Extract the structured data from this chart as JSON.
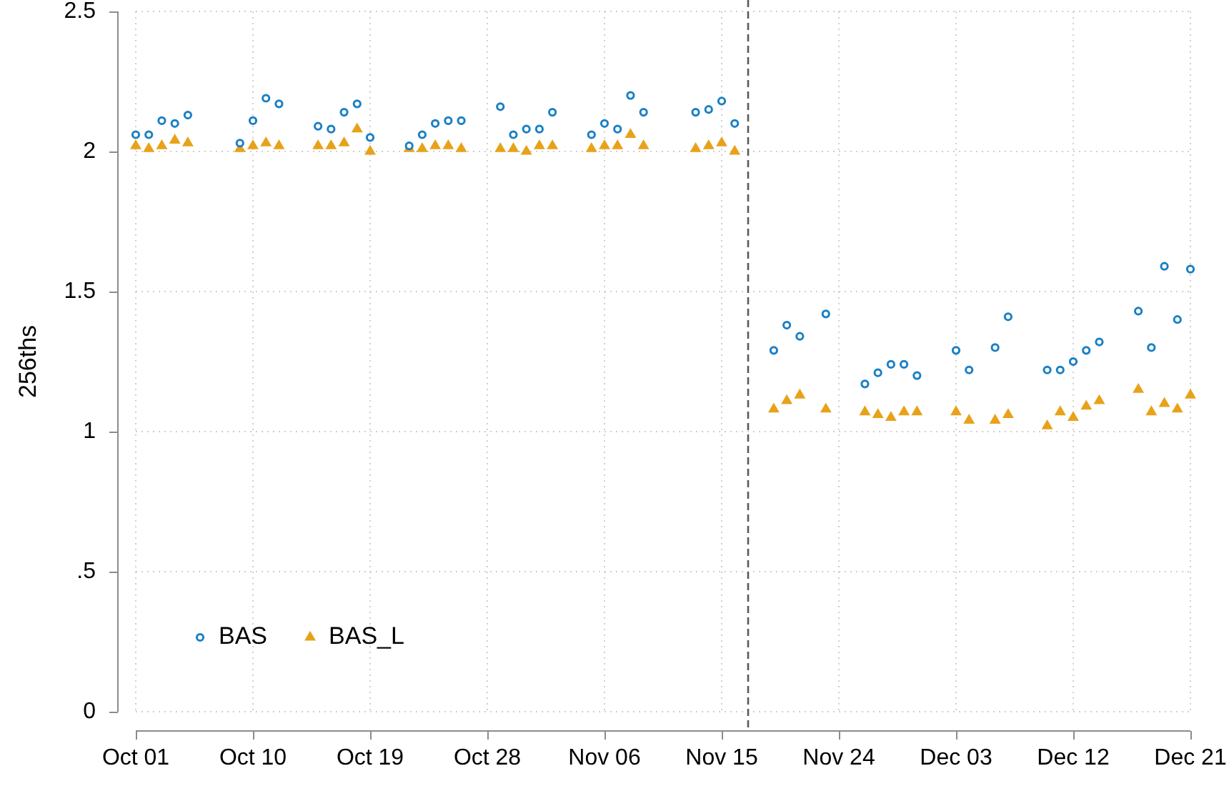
{
  "chart_data": {
    "type": "scatter",
    "ylabel": "256ths",
    "x": [
      "--10-01",
      "--10-02",
      "--10-03",
      "--10-04",
      "--10-05",
      "--10-09",
      "--10-10",
      "--10-11",
      "--10-12",
      "--10-15",
      "--10-16",
      "--10-17",
      "--10-18",
      "--10-19",
      "--10-22",
      "--10-23",
      "--10-24",
      "--10-25",
      "--10-26",
      "--10-29",
      "--10-30",
      "--10-31",
      "--11-01",
      "--11-02",
      "--11-05",
      "--11-06",
      "--11-07",
      "--11-08",
      "--11-09",
      "--11-13",
      "--11-14",
      "--11-15",
      "--11-16",
      "--11-19",
      "--11-20",
      "--11-21",
      "--11-23",
      "--11-26",
      "--11-27",
      "--11-28",
      "--11-29",
      "--11-30",
      "--12-03",
      "--12-04",
      "--12-06",
      "--12-07",
      "--12-10",
      "--12-11",
      "--12-12",
      "--12-13",
      "--12-14",
      "--12-17",
      "--12-18",
      "--12-19",
      "--12-20",
      "--12-21"
    ],
    "series": [
      {
        "name": "BAS",
        "color": "#1a80c4",
        "marker": "circle",
        "values": [
          2.06,
          2.06,
          2.11,
          2.1,
          2.13,
          2.03,
          2.11,
          2.19,
          2.17,
          2.09,
          2.08,
          2.14,
          2.17,
          2.05,
          2.02,
          2.06,
          2.1,
          2.11,
          2.11,
          2.16,
          2.06,
          2.08,
          2.08,
          2.14,
          2.06,
          2.1,
          2.08,
          2.2,
          2.14,
          2.14,
          2.15,
          2.18,
          2.1,
          1.29,
          1.38,
          1.34,
          1.42,
          1.17,
          1.21,
          1.24,
          1.24,
          1.2,
          1.29,
          1.22,
          1.3,
          1.41,
          1.22,
          1.22,
          1.25,
          1.29,
          1.32,
          1.43,
          1.3,
          1.59,
          1.4,
          1.58
        ]
      },
      {
        "name": "BAS_L",
        "color": "#e8a21a",
        "marker": "triangle",
        "values": [
          2.02,
          2.01,
          2.02,
          2.04,
          2.03,
          2.01,
          2.02,
          2.03,
          2.02,
          2.02,
          2.02,
          2.03,
          2.08,
          2.0,
          2.01,
          2.01,
          2.02,
          2.02,
          2.01,
          2.01,
          2.01,
          2.0,
          2.02,
          2.02,
          2.01,
          2.02,
          2.02,
          2.06,
          2.02,
          2.01,
          2.02,
          2.03,
          2.0,
          1.08,
          1.11,
          1.13,
          1.08,
          1.07,
          1.06,
          1.05,
          1.07,
          1.07,
          1.07,
          1.04,
          1.04,
          1.06,
          1.02,
          1.07,
          1.05,
          1.09,
          1.11,
          1.15,
          1.07,
          1.1,
          1.08,
          1.13
        ]
      }
    ],
    "xlim": [
      "--10-01",
      "--12-21"
    ],
    "xticks": [
      {
        "value": "--10-01",
        "label": "Oct 01"
      },
      {
        "value": "--10-10",
        "label": "Oct 10"
      },
      {
        "value": "--10-19",
        "label": "Oct 19"
      },
      {
        "value": "--10-28",
        "label": "Oct 28"
      },
      {
        "value": "--11-06",
        "label": "Nov 06"
      },
      {
        "value": "--11-15",
        "label": "Nov 15"
      },
      {
        "value": "--11-24",
        "label": "Nov 24"
      },
      {
        "value": "--12-03",
        "label": "Dec 03"
      },
      {
        "value": "--12-12",
        "label": "Dec 12"
      },
      {
        "value": "--12-21",
        "label": "Dec 21"
      }
    ],
    "ylim": [
      0,
      2.5
    ],
    "yticks": [
      0,
      {
        "value": 0.5,
        "label": ".5"
      },
      1,
      1.5,
      2,
      2.5
    ],
    "ref_lines": [
      {
        "axis": "x",
        "value": "--11-17",
        "color": "#5a5a5a",
        "line_style": "dashed"
      }
    ],
    "grid": true,
    "legend": "bottom left"
  }
}
